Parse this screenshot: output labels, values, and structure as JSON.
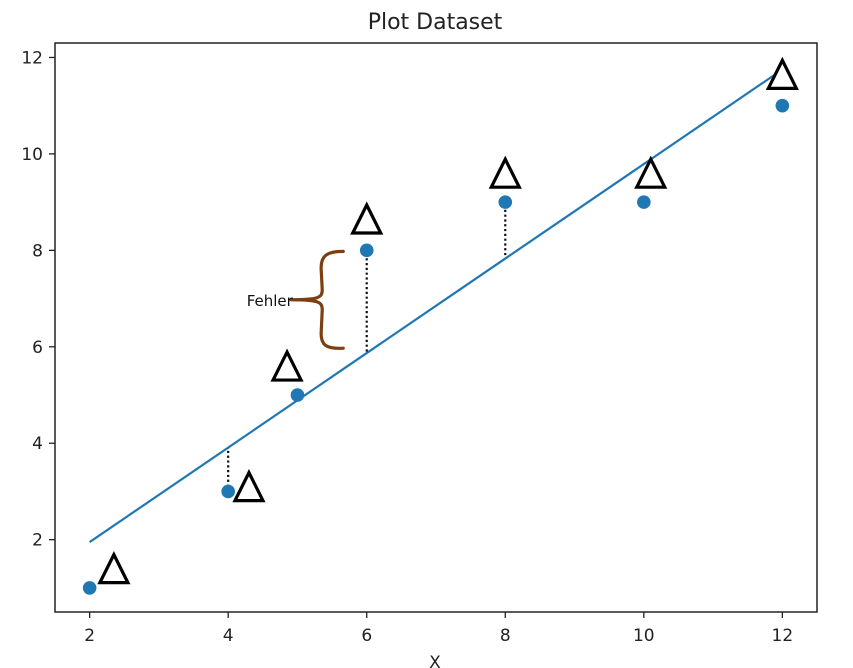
{
  "chart_data": {
    "type": "scatter",
    "title": "Plot Dataset",
    "xlabel": "X",
    "ylabel": "",
    "xlim": [
      1.5,
      12.5
    ],
    "ylim": [
      0.5,
      12.3
    ],
    "xticks": [
      2,
      4,
      6,
      8,
      10,
      12
    ],
    "yticks": [
      2,
      4,
      6,
      8,
      10,
      12
    ],
    "grid": false,
    "series": [
      {
        "type": "scatter",
        "color": "#1f77b4",
        "points": [
          {
            "x": 2,
            "y": 1
          },
          {
            "x": 4,
            "y": 3
          },
          {
            "x": 5,
            "y": 5
          },
          {
            "x": 6,
            "y": 8
          },
          {
            "x": 8,
            "y": 9
          },
          {
            "x": 10,
            "y": 9
          },
          {
            "x": 12,
            "y": 11
          }
        ]
      },
      {
        "type": "line",
        "color": "#1f77b4",
        "points": [
          {
            "x": 2,
            "y": 1.95
          },
          {
            "x": 12,
            "y": 11.75
          }
        ]
      }
    ],
    "annotations": {
      "error_label": "Fehler",
      "error_label_point": {
        "x": 4.6,
        "y": 6.85
      },
      "brace_color": "#7b3f12",
      "brace_range": {
        "x": 5.3,
        "y0": 5.95,
        "y1": 8.0
      },
      "residual_lines": [
        {
          "x": 4,
          "y0": 3.0,
          "y1": 3.9
        },
        {
          "x": 6,
          "y0": 5.9,
          "y1": 8.0
        },
        {
          "x": 8,
          "y0": 7.9,
          "y1": 9.0
        }
      ],
      "delta_symbol": "Δ",
      "delta_markers": [
        {
          "x": 2.35,
          "y": 1.4
        },
        {
          "x": 4.3,
          "y": 3.1
        },
        {
          "x": 4.85,
          "y": 5.6
        },
        {
          "x": 6.0,
          "y": 8.65
        },
        {
          "x": 8.0,
          "y": 9.6
        },
        {
          "x": 10.1,
          "y": 9.6
        },
        {
          "x": 12.0,
          "y": 11.65
        }
      ]
    }
  }
}
